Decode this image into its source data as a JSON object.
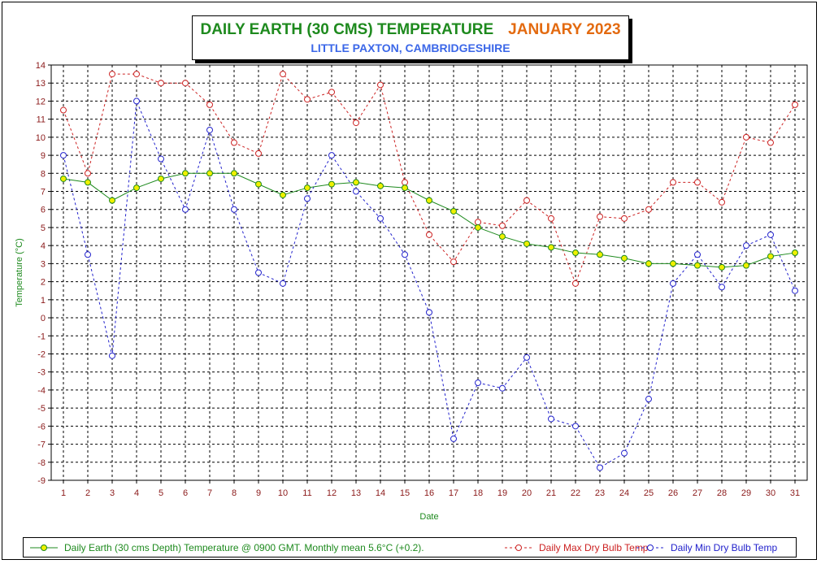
{
  "title": {
    "main": "DAILY EARTH (30 CMS) TEMPERATURE",
    "month": "JANUARY 2023",
    "subtitle": "LITTLE PAXTON, CAMBRIDGESHIRE"
  },
  "colors": {
    "earth": "#1e8a1e",
    "earth_marker": "#f0f000",
    "max": "#cc2222",
    "min": "#2222cc",
    "grid": "#000000",
    "tick_label": "#8b1a1a"
  },
  "chart_data": {
    "type": "line",
    "xlabel": "Date",
    "ylabel": "Temperature (°C)",
    "ylim": [
      -9,
      14
    ],
    "xlim": [
      1,
      31
    ],
    "grid": true,
    "legend_position": "bottom",
    "x": [
      1,
      2,
      3,
      4,
      5,
      6,
      7,
      8,
      9,
      10,
      11,
      12,
      13,
      14,
      15,
      16,
      17,
      18,
      19,
      20,
      21,
      22,
      23,
      24,
      25,
      26,
      27,
      28,
      29,
      30,
      31
    ],
    "series": [
      {
        "name": "Daily Earth (30 cms Depth) Temperature @ 0900 GMT. Monthly mean 5.6°C (+0.2).",
        "style": "solid",
        "values": [
          7.7,
          7.5,
          6.5,
          7.2,
          7.7,
          8.0,
          8.0,
          8.0,
          7.4,
          6.8,
          7.2,
          7.4,
          7.5,
          7.3,
          7.2,
          6.5,
          5.9,
          5.0,
          4.5,
          4.1,
          3.9,
          3.6,
          3.5,
          3.3,
          3.0,
          3.0,
          2.9,
          2.8,
          2.9,
          3.4,
          3.6
        ]
      },
      {
        "name": "Daily Max Dry Bulb Temp",
        "style": "dashed",
        "values": [
          11.5,
          8.0,
          13.5,
          13.5,
          13.0,
          13.0,
          11.8,
          9.7,
          9.1,
          13.5,
          12.1,
          12.5,
          10.8,
          12.9,
          7.5,
          4.6,
          3.1,
          5.3,
          5.1,
          6.5,
          5.5,
          1.9,
          5.6,
          5.5,
          6.0,
          7.5,
          7.5,
          6.4,
          10.0,
          9.7,
          11.8
        ]
      },
      {
        "name": "Daily Min Dry Bulb Temp",
        "style": "dashed",
        "values": [
          9.0,
          3.5,
          -2.1,
          12.0,
          8.8,
          6.0,
          10.4,
          6.0,
          2.5,
          1.9,
          6.6,
          9.0,
          7.0,
          5.5,
          3.5,
          0.3,
          -6.7,
          -3.6,
          -3.9,
          -2.2,
          -5.6,
          -6.0,
          -8.3,
          -7.5,
          -4.5,
          1.9,
          3.5,
          1.7,
          4.0,
          4.6,
          1.5
        ]
      }
    ],
    "yticks": [
      "14",
      "13",
      "12",
      "11",
      "10",
      "9",
      "8",
      "7",
      "6",
      "5",
      "4",
      "3",
      "2",
      "1",
      "0",
      "-1",
      "-2",
      "-3",
      "-4",
      "-5",
      "-6",
      "-7",
      "-8",
      "-9"
    ],
    "xticks": [
      "1",
      "2",
      "3",
      "4",
      "5",
      "6",
      "7",
      "8",
      "9",
      "10",
      "11",
      "12",
      "13",
      "14",
      "15",
      "16",
      "17",
      "18",
      "19",
      "20",
      "21",
      "22",
      "23",
      "24",
      "25",
      "26",
      "27",
      "28",
      "29",
      "30",
      "31"
    ]
  }
}
